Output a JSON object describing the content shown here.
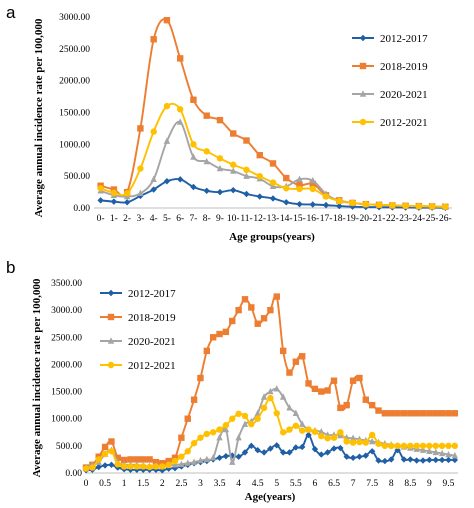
{
  "panels": [
    {
      "letter": "a",
      "chart_data": {
        "type": "line",
        "xlabel": "Age groups(years)",
        "ylabel": "Average annual incidence rate per 100,000",
        "ylim": [
          0,
          3000
        ],
        "y_ticks": [
          "0.00",
          "500.00",
          "1000.00",
          "1500.00",
          "2000.00",
          "2500.00",
          "3000.00"
        ],
        "categories": [
          "0-",
          "1-",
          "2-",
          "3-",
          "4-",
          "5-",
          "6-",
          "7-",
          "8-",
          "9-",
          "10-",
          "11-",
          "12-",
          "13-",
          "14-",
          "15-",
          "16-",
          "17-",
          "18-",
          "19-",
          "20-",
          "21-",
          "22-",
          "23-",
          "24-",
          "25-",
          "26-"
        ],
        "legend_position": "right",
        "series": [
          {
            "name": "2012-2017",
            "color": "#1f5fa6",
            "marker": "diamond",
            "values": [
              120,
              100,
              90,
              190,
              290,
              420,
              450,
              330,
              270,
              250,
              280,
              220,
              180,
              150,
              90,
              60,
              55,
              45,
              30,
              20,
              15,
              12,
              10,
              8,
              6,
              5,
              4
            ]
          },
          {
            "name": "2018-2019",
            "color": "#ed7d31",
            "marker": "square",
            "values": [
              350,
              290,
              250,
              1250,
              2650,
              2950,
              2350,
              1700,
              1450,
              1380,
              1170,
              1060,
              830,
              700,
              470,
              360,
              380,
              200,
              120,
              80,
              60,
              50,
              40,
              35,
              30,
              25,
              20
            ]
          },
          {
            "name": "2020-2021",
            "color": "#a5a5a5",
            "marker": "triangle",
            "values": [
              270,
              200,
              180,
              230,
              450,
              1050,
              1350,
              800,
              730,
              620,
              580,
              500,
              460,
              340,
              340,
              450,
              430,
              220,
              110,
              80,
              60,
              50,
              40,
              30,
              25,
              20,
              15
            ]
          },
          {
            "name": "2012-2021",
            "color": "#ffc000",
            "marker": "circle",
            "values": [
              310,
              240,
              230,
              620,
              1200,
              1600,
              1550,
              1000,
              890,
              780,
              680,
              600,
              500,
              400,
              310,
              300,
              300,
              180,
              110,
              80,
              60,
              50,
              40,
              35,
              30,
              25,
              20
            ]
          }
        ]
      }
    },
    {
      "letter": "b",
      "chart_data": {
        "type": "line",
        "xlabel": "Age(years)",
        "ylabel": "Average annual incidence rate per 100,000",
        "ylim": [
          0,
          3500
        ],
        "xlim": [
          0,
          9.75
        ],
        "y_ticks": [
          "0.00",
          "500.00",
          "1000.00",
          "1500.00",
          "2000.00",
          "2500.00",
          "3000.00",
          "3500.00"
        ],
        "x_ticks": [
          "0",
          "0.5",
          "1",
          "1.5",
          "2",
          "2.5",
          "3",
          "3.5",
          "4",
          "4.5",
          "5",
          "5.5",
          "6",
          "6.5",
          "7",
          "7.5",
          "8",
          "8.5",
          "9",
          "9.5"
        ],
        "x": [
          0,
          0.167,
          0.333,
          0.5,
          0.667,
          0.833,
          1,
          1.167,
          1.333,
          1.5,
          1.667,
          1.833,
          2,
          2.167,
          2.333,
          2.5,
          2.667,
          2.833,
          3,
          3.167,
          3.333,
          3.5,
          3.667,
          3.833,
          4,
          4.167,
          4.333,
          4.5,
          4.667,
          4.833,
          5,
          5.167,
          5.333,
          5.5,
          5.667,
          5.833,
          6,
          6.167,
          6.333,
          6.5,
          6.667,
          6.833,
          7,
          7.167,
          7.333,
          7.5,
          7.667,
          7.833,
          8,
          8.167,
          8.333,
          8.5,
          8.667,
          8.833,
          9,
          9.167,
          9.333,
          9.5,
          9.667
        ],
        "legend_position": "left",
        "series": [
          {
            "name": "2012-2017",
            "color": "#1f5fa6",
            "marker": "diamond",
            "values": [
              50,
              60,
              110,
              140,
              150,
              100,
              70,
              60,
              60,
              60,
              60,
              60,
              50,
              80,
              90,
              120,
              150,
              180,
              200,
              220,
              250,
              280,
              310,
              320,
              300,
              380,
              500,
              420,
              380,
              450,
              510,
              380,
              380,
              470,
              480,
              700,
              440,
              340,
              380,
              450,
              460,
              300,
              280,
              300,
              320,
              400,
              230,
              220,
              250,
              420,
              250,
              250,
              230,
              230,
              240,
              240,
              240,
              240,
              240
            ]
          },
          {
            "name": "2018-2019",
            "color": "#ed7d31",
            "marker": "square",
            "values": [
              100,
              150,
              300,
              480,
              580,
              280,
              240,
              250,
              250,
              250,
              250,
              200,
              180,
              220,
              280,
              650,
              1000,
              1350,
              1750,
              2250,
              2500,
              2560,
              2600,
              2800,
              3000,
              3200,
              3050,
              2750,
              2850,
              3000,
              3250,
              2250,
              1850,
              2050,
              2150,
              1650,
              1550,
              1500,
              1520,
              1700,
              1200,
              1250,
              1700,
              1750,
              1350,
              1250,
              1150,
              1100,
              1100,
              1100,
              1100,
              1100,
              1100,
              1100,
              1100,
              1100,
              1100,
              1100,
              1100
            ]
          },
          {
            "name": "2020-2021",
            "color": "#a5a5a5",
            "marker": "triangle",
            "values": [
              100,
              150,
              200,
              350,
              420,
              200,
              150,
              150,
              150,
              130,
              120,
              130,
              120,
              140,
              150,
              160,
              180,
              200,
              230,
              250,
              280,
              650,
              800,
              200,
              650,
              900,
              950,
              1100,
              1400,
              1500,
              1550,
              1400,
              1200,
              1100,
              900,
              800,
              780,
              760,
              700,
              700,
              690,
              650,
              640,
              620,
              600,
              580,
              560,
              540,
              520,
              500,
              480,
              460,
              440,
              420,
              400,
              380,
              360,
              340,
              320
            ]
          },
          {
            "name": "2012-2021",
            "color": "#ffc000",
            "marker": "circle",
            "values": [
              80,
              100,
              250,
              350,
              400,
              160,
              120,
              120,
              120,
              120,
              110,
              120,
              120,
              150,
              220,
              300,
              400,
              550,
              650,
              720,
              750,
              800,
              880,
              1000,
              1090,
              1050,
              900,
              1000,
              1200,
              1380,
              1100,
              750,
              800,
              870,
              780,
              800,
              760,
              680,
              640,
              650,
              750,
              580,
              560,
              570,
              560,
              700,
              540,
              500,
              500,
              500,
              500,
              500,
              500,
              500,
              500,
              500,
              500,
              500,
              500
            ]
          }
        ]
      }
    }
  ]
}
